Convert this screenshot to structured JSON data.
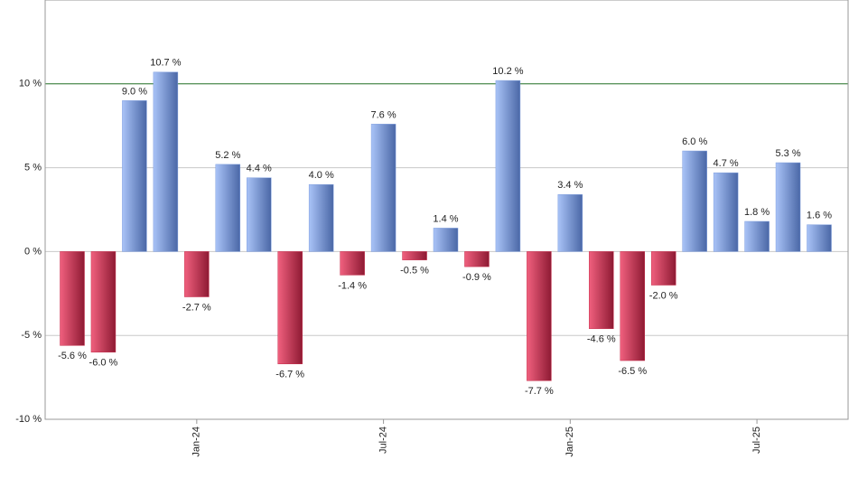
{
  "chart_data": {
    "type": "bar",
    "categories": [
      null,
      null,
      null,
      null,
      "Jan-24",
      null,
      null,
      null,
      null,
      null,
      "Jul-24",
      null,
      null,
      null,
      null,
      null,
      "Jan-25",
      null,
      null,
      null,
      null,
      null,
      "Jul-25",
      null,
      null
    ],
    "values": [
      -5.6,
      -6.0,
      9.0,
      10.7,
      -2.7,
      5.2,
      4.4,
      -6.7,
      4.0,
      -1.4,
      7.6,
      -0.5,
      1.4,
      -0.9,
      10.2,
      -7.7,
      3.4,
      -4.6,
      -6.5,
      -2.0,
      6.0,
      4.7,
      1.8,
      5.3,
      1.6
    ],
    "value_labels": [
      "-5.6 %",
      "-6.0 %",
      "9.0 %",
      "10.7 %",
      "-2.7 %",
      "5.2 %",
      "4.4 %",
      "-6.7 %",
      "4.0 %",
      "-1.4 %",
      "7.6 %",
      "-0.5 %",
      "1.4 %",
      "-0.9 %",
      "10.2 %",
      "-7.7 %",
      "3.4 %",
      "-4.6 %",
      "-6.5 %",
      "-2.0 %",
      "6.0 %",
      "4.7 %",
      "1.8 %",
      "5.3 %",
      "1.6 %"
    ],
    "positive_color": "#7f9fdf",
    "negative_color": "#c8304e",
    "ylim": [
      -10,
      15
    ],
    "yticks": [
      {
        "value": -10,
        "label": "-10 %"
      },
      {
        "value": -5,
        "label": "-5 %"
      },
      {
        "value": 0,
        "label": "0 %"
      },
      {
        "value": 5,
        "label": "5 %"
      },
      {
        "value": 10,
        "label": "10 %"
      }
    ],
    "grid": true,
    "reference_line": {
      "value": 10,
      "color": "#2e7d32"
    }
  }
}
